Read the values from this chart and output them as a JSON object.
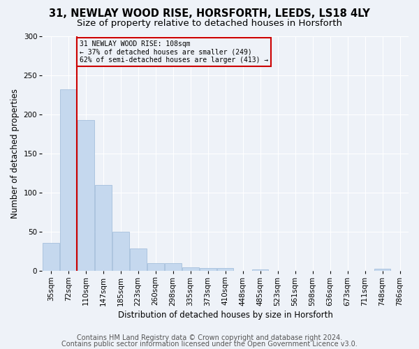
{
  "title_line1": "31, NEWLAY WOOD RISE, HORSFORTH, LEEDS, LS18 4LY",
  "title_line2": "Size of property relative to detached houses in Horsforth",
  "xlabel": "Distribution of detached houses by size in Horsforth",
  "ylabel": "Number of detached properties",
  "bar_color": "#c5d8ee",
  "bar_edgecolor": "#9ab8d8",
  "annotation_line_color": "#cc0000",
  "annotation_box_edgecolor": "#cc0000",
  "annotation_text": "31 NEWLAY WOOD RISE: 108sqm\n← 37% of detached houses are smaller (249)\n62% of semi-detached houses are larger (413) →",
  "marker_bin_index": 2,
  "categories": [
    "35sqm",
    "72sqm",
    "110sqm",
    "147sqm",
    "185sqm",
    "223sqm",
    "260sqm",
    "298sqm",
    "335sqm",
    "373sqm",
    "410sqm",
    "448sqm",
    "485sqm",
    "523sqm",
    "561sqm",
    "598sqm",
    "636sqm",
    "673sqm",
    "711sqm",
    "748sqm",
    "786sqm"
  ],
  "values": [
    36,
    232,
    193,
    110,
    50,
    29,
    10,
    10,
    5,
    4,
    4,
    0,
    2,
    0,
    0,
    0,
    0,
    0,
    0,
    3,
    0
  ],
  "ylim": [
    0,
    300
  ],
  "yticks": [
    0,
    50,
    100,
    150,
    200,
    250,
    300
  ],
  "footer_line1": "Contains HM Land Registry data © Crown copyright and database right 2024.",
  "footer_line2": "Contains public sector information licensed under the Open Government Licence v3.0.",
  "background_color": "#eef2f8",
  "grid_color": "#ffffff",
  "title_fontsize": 10.5,
  "subtitle_fontsize": 9.5,
  "axis_label_fontsize": 8.5,
  "tick_fontsize": 7.5,
  "footer_fontsize": 7.0
}
